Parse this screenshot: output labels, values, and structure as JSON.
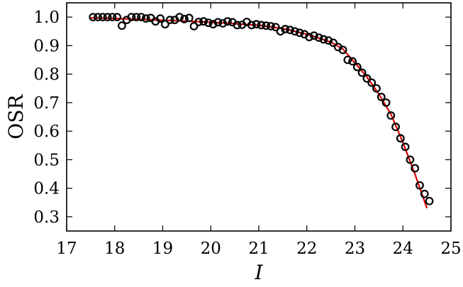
{
  "chart_data": {
    "type": "scatter",
    "title": "",
    "xlabel": "I",
    "ylabel": "OSR",
    "xlim": [
      17,
      25
    ],
    "ylim": [
      0.25,
      1.05
    ],
    "xticks": [
      "17",
      "18",
      "19",
      "20",
      "21",
      "22",
      "23",
      "24",
      "25"
    ],
    "yticks": [
      "0.3",
      "0.4",
      "0.5",
      "0.6",
      "0.7",
      "0.8",
      "0.9",
      "1.0"
    ],
    "grid": false,
    "legend": "none",
    "series": [
      {
        "kind": "markers",
        "marker": "open-circle",
        "color": "#000000",
        "points": [
          [
            17.55,
            1.0
          ],
          [
            17.65,
            1.0
          ],
          [
            17.75,
            1.0
          ],
          [
            17.85,
            1.0
          ],
          [
            17.95,
            1.0
          ],
          [
            18.05,
            1.0
          ],
          [
            18.15,
            0.97
          ],
          [
            18.25,
            0.99
          ],
          [
            18.35,
            1.0
          ],
          [
            18.45,
            1.0
          ],
          [
            18.55,
            1.0
          ],
          [
            18.65,
            0.995
          ],
          [
            18.75,
            0.997
          ],
          [
            18.85,
            0.985
          ],
          [
            18.95,
            0.995
          ],
          [
            19.05,
            0.975
          ],
          [
            19.15,
            0.99
          ],
          [
            19.25,
            0.99
          ],
          [
            19.35,
            1.0
          ],
          [
            19.45,
            0.993
          ],
          [
            19.55,
            0.997
          ],
          [
            19.65,
            0.968
          ],
          [
            19.75,
            0.983
          ],
          [
            19.85,
            0.985
          ],
          [
            19.95,
            0.98
          ],
          [
            20.05,
            0.975
          ],
          [
            20.15,
            0.982
          ],
          [
            20.25,
            0.978
          ],
          [
            20.35,
            0.985
          ],
          [
            20.45,
            0.982
          ],
          [
            20.55,
            0.972
          ],
          [
            20.65,
            0.973
          ],
          [
            20.75,
            0.983
          ],
          [
            20.85,
            0.972
          ],
          [
            20.95,
            0.975
          ],
          [
            21.05,
            0.972
          ],
          [
            21.15,
            0.97
          ],
          [
            21.25,
            0.968
          ],
          [
            21.35,
            0.965
          ],
          [
            21.45,
            0.95
          ],
          [
            21.55,
            0.958
          ],
          [
            21.65,
            0.955
          ],
          [
            21.75,
            0.95
          ],
          [
            21.85,
            0.945
          ],
          [
            21.95,
            0.94
          ],
          [
            22.05,
            0.93
          ],
          [
            22.15,
            0.935
          ],
          [
            22.25,
            0.928
          ],
          [
            22.35,
            0.922
          ],
          [
            22.45,
            0.918
          ],
          [
            22.55,
            0.91
          ],
          [
            22.65,
            0.895
          ],
          [
            22.75,
            0.885
          ],
          [
            22.85,
            0.85
          ],
          [
            22.95,
            0.845
          ],
          [
            23.05,
            0.825
          ],
          [
            23.15,
            0.805
          ],
          [
            23.25,
            0.785
          ],
          [
            23.35,
            0.77
          ],
          [
            23.45,
            0.75
          ],
          [
            23.55,
            0.72
          ],
          [
            23.65,
            0.7
          ],
          [
            23.75,
            0.655
          ],
          [
            23.85,
            0.615
          ],
          [
            23.95,
            0.575
          ],
          [
            24.05,
            0.545
          ],
          [
            24.15,
            0.5
          ],
          [
            24.25,
            0.47
          ],
          [
            24.35,
            0.41
          ],
          [
            24.45,
            0.38
          ],
          [
            24.55,
            0.355
          ]
        ]
      },
      {
        "kind": "line",
        "color": "#dd0000",
        "points": [
          [
            17.5,
            0.997
          ],
          [
            18.0,
            0.995
          ],
          [
            18.5,
            0.992
          ],
          [
            19.0,
            0.989
          ],
          [
            19.5,
            0.986
          ],
          [
            20.0,
            0.982
          ],
          [
            20.5,
            0.977
          ],
          [
            21.0,
            0.971
          ],
          [
            21.5,
            0.96
          ],
          [
            22.0,
            0.94
          ],
          [
            22.5,
            0.912
          ],
          [
            22.75,
            0.888
          ],
          [
            23.0,
            0.84
          ],
          [
            23.25,
            0.79
          ],
          [
            23.5,
            0.73
          ],
          [
            23.75,
            0.66
          ],
          [
            24.0,
            0.56
          ],
          [
            24.25,
            0.45
          ],
          [
            24.5,
            0.33
          ]
        ]
      }
    ]
  }
}
